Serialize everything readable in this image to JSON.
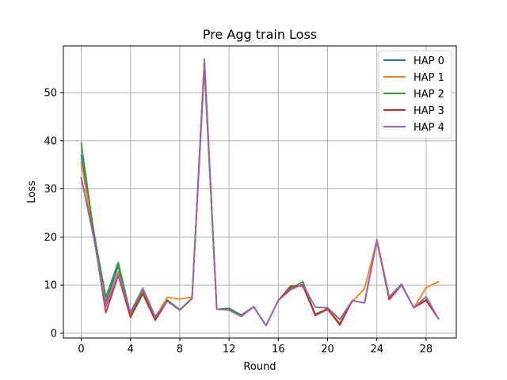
{
  "chart_data": {
    "type": "line",
    "title": "Pre Agg train Loss",
    "xlabel": "Round",
    "ylabel": "Loss",
    "xlim": [
      -1.45,
      30.45
    ],
    "ylim": [
      -1.0,
      59.7
    ],
    "xticks": [
      0,
      4,
      8,
      12,
      16,
      20,
      24,
      28
    ],
    "yticks": [
      0,
      10,
      20,
      30,
      40,
      50
    ],
    "grid": true,
    "legend_position": "top-right",
    "x": [
      0,
      1,
      2,
      3,
      4,
      5,
      6,
      7,
      8,
      9,
      10,
      11,
      12,
      13,
      14,
      15,
      16,
      17,
      18,
      19,
      20,
      21,
      22,
      23,
      24,
      25,
      26,
      27,
      28,
      29
    ],
    "series": [
      {
        "name": "HAP 0",
        "color": "#1f77b4",
        "values": [
          37.0,
          21.5,
          6.5,
          14.0,
          3.8,
          9.0,
          3.0,
          6.8,
          4.8,
          7.2,
          56.8,
          5.0,
          4.8,
          3.5,
          5.5,
          1.6,
          6.8,
          9.5,
          10.0,
          4.0,
          5.0,
          2.0,
          6.8,
          6.3,
          19.3,
          7.5,
          10.2,
          5.3,
          7.0,
          3.0
        ]
      },
      {
        "name": "HAP 1",
        "color": "#ff7f0e",
        "values": [
          35.5,
          20.8,
          5.8,
          12.8,
          3.8,
          8.8,
          3.3,
          7.5,
          7.1,
          7.5,
          55.0,
          5.0,
          5.1,
          3.8,
          5.5,
          1.6,
          6.8,
          9.2,
          10.2,
          3.7,
          5.2,
          2.8,
          6.5,
          9.3,
          19.2,
          7.3,
          10.0,
          5.3,
          9.5,
          10.7
        ]
      },
      {
        "name": "HAP 2",
        "color": "#2ca02c",
        "values": [
          39.5,
          21.2,
          7.5,
          14.7,
          4.0,
          8.6,
          3.2,
          6.9,
          4.9,
          7.3,
          56.5,
          5.0,
          5.2,
          3.8,
          5.5,
          1.6,
          6.8,
          9.3,
          10.7,
          3.8,
          5.1,
          2.0,
          6.8,
          6.3,
          19.4,
          7.4,
          10.1,
          5.3,
          7.0,
          3.1
        ]
      },
      {
        "name": "HAP 3",
        "color": "#d62728",
        "values": [
          32.3,
          20.5,
          4.3,
          12.0,
          3.3,
          8.2,
          2.7,
          6.7,
          4.8,
          7.2,
          56.2,
          5.0,
          4.9,
          3.6,
          5.5,
          1.6,
          6.8,
          9.8,
          9.8,
          3.7,
          5.0,
          1.7,
          6.8,
          6.3,
          19.3,
          7.0,
          10.0,
          5.3,
          6.8,
          3.0
        ]
      },
      {
        "name": "HAP 4",
        "color": "#9467bd",
        "values": [
          32.3,
          20.0,
          5.5,
          12.3,
          4.4,
          9.4,
          3.5,
          6.6,
          4.8,
          7.2,
          57.0,
          5.0,
          4.9,
          3.5,
          5.5,
          1.6,
          6.8,
          9.0,
          10.2,
          5.4,
          5.3,
          2.9,
          6.8,
          6.3,
          19.5,
          7.6,
          10.0,
          5.3,
          7.6,
          3.0
        ]
      }
    ]
  }
}
